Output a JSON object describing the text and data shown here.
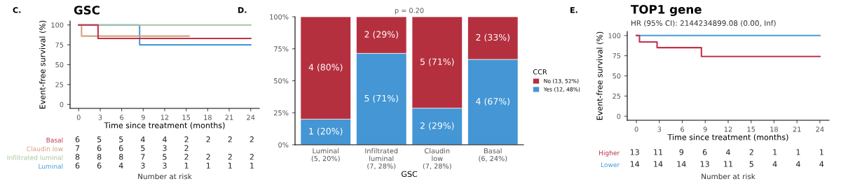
{
  "chart_data": [
    {
      "type": "step",
      "title": "GSC",
      "annotations": [
        "C."
      ],
      "xlabel": "Time since treatment (months)",
      "ylabel": "Event-free survival (%)",
      "xlim": [
        -1.2,
        25.2
      ],
      "ylim": [
        -5,
        105
      ],
      "xticks": [
        0,
        3,
        6,
        9,
        12,
        15,
        18,
        21,
        24
      ],
      "yticks": [
        0,
        25,
        50,
        75,
        100
      ],
      "grid": false,
      "legend": false,
      "series": [
        {
          "color": "#c0334d",
          "x": [
            0,
            2.7,
            24
          ],
          "values": [
            100,
            83,
            83
          ]
        },
        {
          "color": "#d4a27f",
          "x": [
            0,
            0.4,
            15.4
          ],
          "values": [
            100,
            86,
            86
          ]
        },
        {
          "color": "#a9c4a0",
          "x": [
            0,
            24
          ],
          "values": [
            100,
            100
          ]
        },
        {
          "color": "#4a9bd6",
          "x": [
            0,
            8.5,
            24
          ],
          "values": [
            100,
            75,
            75
          ]
        }
      ]
    },
    {
      "type": "heatmap",
      "xlabel": "Number at risk",
      "tick_labels": "y",
      "data_labels": true,
      "categories": [
        "0",
        "3",
        "6",
        "9",
        "12",
        "15",
        "18",
        "21",
        "24"
      ],
      "y_categories": [
        "Basal",
        "Claudin low",
        "Infiltrated luminal",
        "Luminal"
      ],
      "cells": [
        [
          6,
          5,
          5,
          4,
          4,
          2,
          2,
          2,
          2
        ],
        [
          7,
          6,
          6,
          5,
          3,
          2,
          null,
          null,
          null
        ],
        [
          8,
          8,
          8,
          7,
          5,
          2,
          2,
          2,
          2
        ],
        [
          6,
          6,
          4,
          3,
          3,
          1,
          1,
          1,
          1
        ]
      ]
    },
    {
      "type": "bar",
      "stacked": true,
      "title": "p = 0.20",
      "annotations": [
        "D."
      ],
      "xlabel": "GSC",
      "legend_title": "CCR",
      "legend": "right",
      "categories": [
        "Luminal\n(5, 20%)",
        "Infiltrated\nluminal\n(7, 28%)",
        "Claudin\nlow\n(7, 28%)",
        "Basal\n(6, 24%)"
      ],
      "ylim": [
        0,
        100
      ],
      "yticks": [
        {
          "value": 0,
          "label": "0%"
        },
        {
          "value": 25,
          "label": "25%"
        },
        {
          "value": 50,
          "label": "50%"
        },
        {
          "value": 75,
          "label": "75%"
        },
        {
          "value": 100,
          "label": "100%"
        }
      ],
      "series": [
        {
          "name": "Yes (12, 48%)",
          "color": "#4496d4",
          "values": [
            20,
            71.4,
            28.6,
            66.7
          ],
          "value_labels": [
            "1 (20%)",
            "5 (71%)",
            "2 (29%)",
            "4 (67%)"
          ]
        },
        {
          "name": "No (13, 52%)",
          "color": "#b5303f",
          "values": [
            80,
            28.6,
            71.4,
            33.3
          ],
          "value_labels": [
            "4 (80%)",
            "2 (29%)",
            "5 (71%)",
            "2 (33%)"
          ]
        }
      ]
    },
    {
      "type": "step",
      "title": "TOP1 gene",
      "subtitle": "HR (95% CI): 2144234899.08 (0.00, Inf)",
      "annotations": [
        "E."
      ],
      "xlabel": "Time since treatment (months)",
      "ylabel": "Event-free survival (%)",
      "xlim": [
        -1.2,
        25.2
      ],
      "ylim": [
        -5,
        105
      ],
      "xticks": [
        0,
        3,
        6,
        9,
        12,
        15,
        18,
        21,
        24
      ],
      "yticks": [
        0,
        25,
        50,
        75,
        100
      ],
      "grid": false,
      "legend": false,
      "series": [
        {
          "color": "#c0334d",
          "x": [
            0,
            0.4,
            2.7,
            8.5,
            24
          ],
          "values": [
            100,
            92,
            85,
            74,
            74
          ]
        },
        {
          "color": "#4a9bd6",
          "x": [
            0,
            24
          ],
          "values": [
            100,
            100
          ]
        }
      ]
    },
    {
      "type": "heatmap",
      "xlabel": "Number at risk",
      "tick_labels": "y",
      "data_labels": true,
      "categories": [
        "0",
        "3",
        "6",
        "9",
        "12",
        "15",
        "18",
        "21",
        "24"
      ],
      "y_categories": [
        "Higher",
        "Lower"
      ],
      "cells": [
        [
          13,
          11,
          9,
          6,
          4,
          2,
          1,
          1,
          1
        ],
        [
          14,
          14,
          14,
          13,
          11,
          5,
          4,
          4,
          4
        ]
      ]
    }
  ]
}
